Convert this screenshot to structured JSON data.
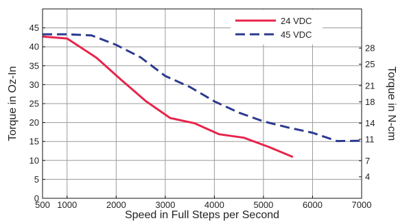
{
  "chart_data": {
    "type": "line",
    "title": "",
    "xlabel": "Speed in Full Steps per Second",
    "ylabel": "Torque in Oz-In",
    "y2label": "Torque in N-cm",
    "xlim": [
      500,
      7000
    ],
    "ylim": [
      0,
      50
    ],
    "x_ticks": [
      500,
      1000,
      2000,
      3000,
      4000,
      5000,
      6000,
      7000
    ],
    "y_ticks": [
      0,
      5,
      10,
      15,
      20,
      25,
      30,
      35,
      40,
      45
    ],
    "y2_ticks": [
      4,
      7,
      11,
      14,
      18,
      21,
      25,
      28
    ],
    "grid": true,
    "legend_position": "top-right",
    "series": [
      {
        "name": "24 VDC",
        "color": "#e8234a",
        "style": "solid",
        "x": [
          500,
          1000,
          1600,
          2100,
          2600,
          3100,
          3600,
          4100,
          4600,
          5100,
          5600
        ],
        "y": [
          42.7,
          42.2,
          37.1,
          31.3,
          25.7,
          21.2,
          19.8,
          16.9,
          16.0,
          13.6,
          10.9
        ]
      },
      {
        "name": "45 VDC",
        "color": "#2b3a8e",
        "style": "dashed",
        "x": [
          500,
          1000,
          1500,
          2000,
          2500,
          3000,
          3500,
          4000,
          4500,
          5000,
          5500,
          6000,
          6500,
          7000
        ],
        "y": [
          43.3,
          43.3,
          43.0,
          40.5,
          37.2,
          32.3,
          29.4,
          25.6,
          22.6,
          20.3,
          18.7,
          17.3,
          15.1,
          15.2
        ]
      }
    ]
  }
}
